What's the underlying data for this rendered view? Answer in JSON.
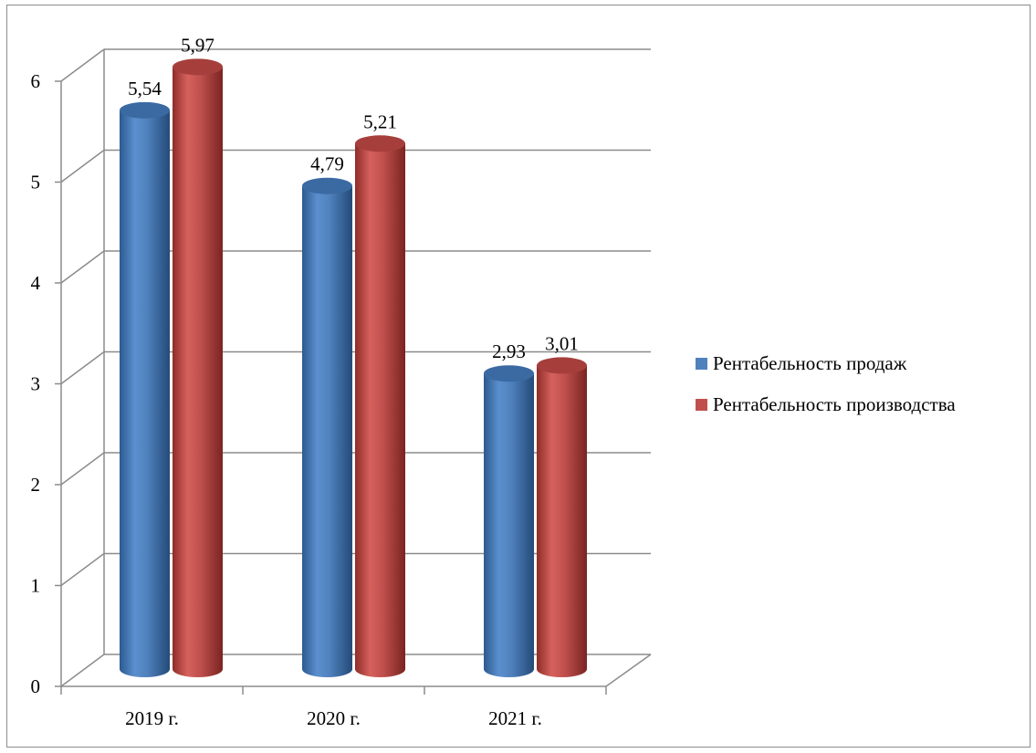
{
  "chart_data": {
    "type": "bar",
    "style": "3d-cylinder",
    "categories": [
      "2019 г.",
      "2020 г.",
      "2021 г."
    ],
    "series": [
      {
        "name": "Рентабельность продаж",
        "values": [
          5.54,
          4.79,
          2.93
        ],
        "color": "#4f81bd",
        "labels": [
          "5,54",
          "4,79",
          "2,93"
        ]
      },
      {
        "name": "Рентабельность производства",
        "values": [
          5.97,
          5.21,
          3.01
        ],
        "color": "#c0504d",
        "labels": [
          "5,97",
          "5,21",
          "3,01"
        ]
      }
    ],
    "yticks": [
      "0",
      "1",
      "2",
      "3",
      "4",
      "5",
      "6"
    ],
    "ylim": [
      0,
      6
    ],
    "grid": true,
    "legend_position": "right"
  }
}
